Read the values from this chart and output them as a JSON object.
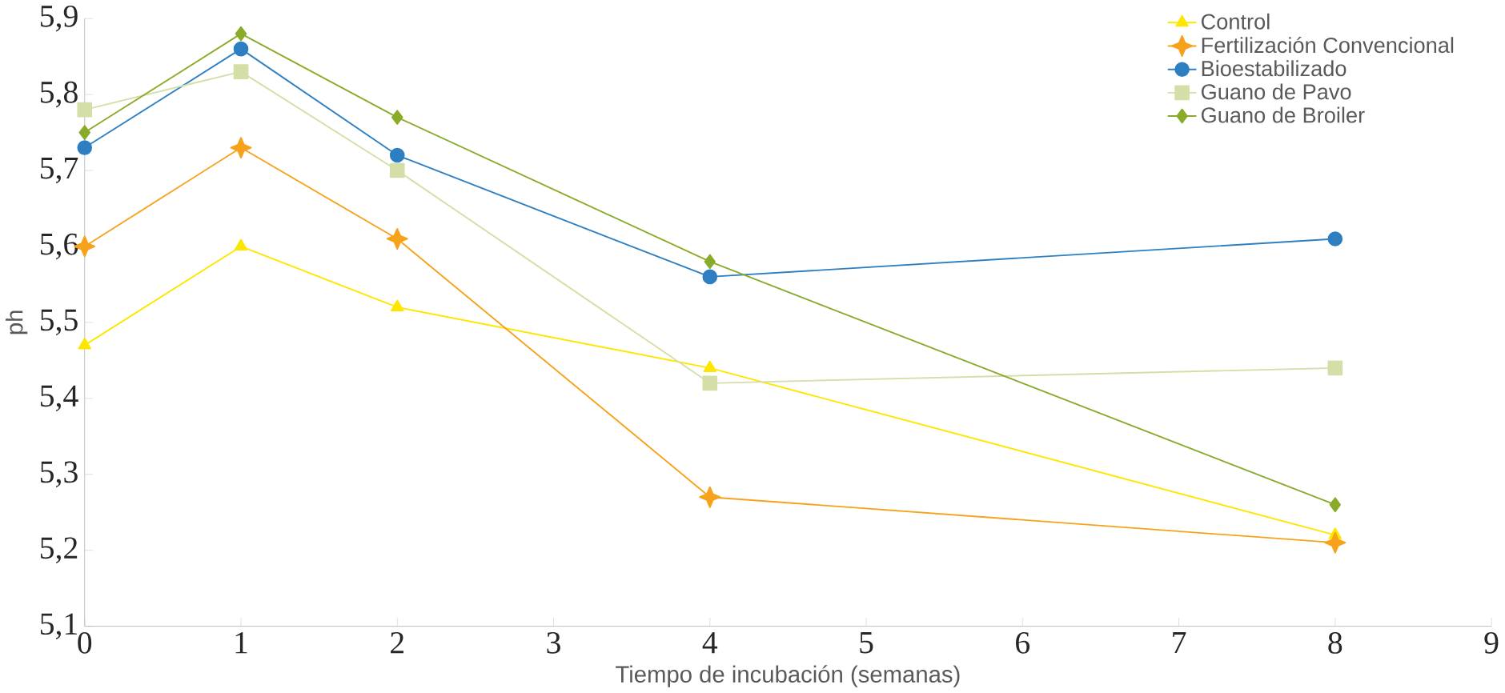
{
  "chart_data": {
    "type": "line",
    "xlabel": "Tiempo de incubación (semanas)",
    "ylabel": "ph",
    "x": [
      0,
      1,
      2,
      4,
      8
    ],
    "xlim": [
      0,
      9
    ],
    "xticks": [
      0,
      1,
      2,
      3,
      4,
      5,
      6,
      7,
      8,
      9
    ],
    "ylim": [
      5.1,
      5.9
    ],
    "yticks": [
      {
        "value": 5.1,
        "label": "5,1"
      },
      {
        "value": 5.2,
        "label": "5,2"
      },
      {
        "value": 5.3,
        "label": "5,3"
      },
      {
        "value": 5.4,
        "label": "5,4"
      },
      {
        "value": 5.5,
        "label": "5,5"
      },
      {
        "value": 5.6,
        "label": "5,6"
      },
      {
        "value": 5.7,
        "label": "5,7"
      },
      {
        "value": 5.8,
        "label": "5,8"
      },
      {
        "value": 5.9,
        "label": "5,9"
      }
    ],
    "grid": false,
    "legend": "top right",
    "line_style": "solid",
    "series": [
      {
        "name": "Control",
        "color": "#ffe600",
        "marker": "triangle",
        "values": [
          5.47,
          5.6,
          5.52,
          5.44,
          5.22
        ]
      },
      {
        "name": "Fertilización Convencional",
        "color": "#f7a21b",
        "marker": "star",
        "values": [
          5.6,
          5.73,
          5.61,
          5.27,
          5.21
        ]
      },
      {
        "name": "Bioestabilizado",
        "color": "#2e7fc1",
        "marker": "circle",
        "values": [
          5.73,
          5.86,
          5.72,
          5.56,
          5.61
        ]
      },
      {
        "name": "Guano de Pavo",
        "color": "#d4dfa8",
        "marker": "square",
        "values": [
          5.78,
          5.83,
          5.7,
          5.42,
          5.44
        ]
      },
      {
        "name": "Guano de Broiler",
        "color": "#8aab2a",
        "marker": "diamond",
        "values": [
          5.75,
          5.88,
          5.77,
          5.58,
          5.26
        ]
      }
    ]
  }
}
